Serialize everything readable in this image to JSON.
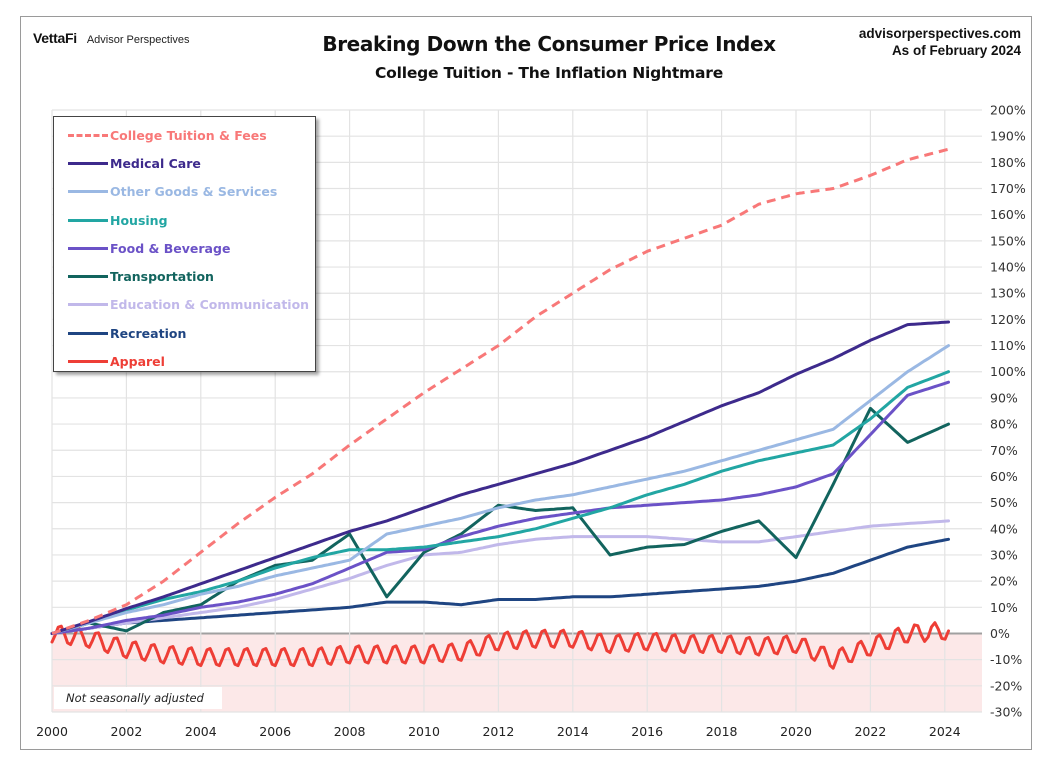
{
  "header": {
    "brand_logo": "VettaFi",
    "brand_name": "Advisor Perspectives",
    "title": "Breaking Down the Consumer Price Index",
    "subtitle": "College Tuition - The Inflation Nightmare",
    "source_site": "advisorperspectives.com",
    "as_of": "As of February 2024"
  },
  "note": "Not seasonally adjusted",
  "chart_data": {
    "type": "line",
    "title": "Breaking Down the Consumer Price Index",
    "subtitle": "College Tuition - The Inflation Nightmare",
    "xlabel": "",
    "ylabel": "",
    "xlim": [
      2000,
      2025
    ],
    "ylim": [
      -30,
      200
    ],
    "x_ticks": [
      "2000",
      "2002",
      "2004",
      "2006",
      "2008",
      "2010",
      "2012",
      "2014",
      "2016",
      "2018",
      "2020",
      "2022",
      "2024"
    ],
    "y_ticks": [
      "200%",
      "190%",
      "180%",
      "170%",
      "160%",
      "150%",
      "140%",
      "130%",
      "120%",
      "110%",
      "100%",
      "90%",
      "80%",
      "70%",
      "60%",
      "50%",
      "40%",
      "30%",
      "20%",
      "10%",
      "0%",
      "-10%",
      "-20%",
      "-30%"
    ],
    "y_axis_side": "right",
    "grid": true,
    "negative_region_shaded": true,
    "negative_region_color": "#fce8e8",
    "legend_position": "top-left",
    "x": [
      2000,
      2001,
      2002,
      2003,
      2004,
      2005,
      2006,
      2007,
      2008,
      2009,
      2010,
      2011,
      2012,
      2013,
      2014,
      2015,
      2016,
      2017,
      2018,
      2019,
      2020,
      2021,
      2022,
      2023,
      2024.1
    ],
    "series": [
      {
        "name": "College Tuition & Fees",
        "color": "#f87878",
        "dashed": true,
        "values": [
          0,
          5,
          11,
          20,
          31,
          42,
          52,
          61,
          72,
          82,
          92,
          101,
          110,
          121,
          130,
          139,
          146,
          151,
          156,
          164,
          168,
          170,
          175,
          181,
          185
        ]
      },
      {
        "name": "Medical Care",
        "color": "#3d2a8c",
        "dashed": false,
        "values": [
          0,
          4.5,
          9.5,
          14,
          19,
          24,
          29,
          34,
          39,
          43,
          48,
          53,
          57,
          61,
          65,
          70,
          75,
          81,
          87,
          92,
          99,
          105,
          112,
          118,
          119
        ]
      },
      {
        "name": "Other Goods & Services",
        "color": "#9ab8e3",
        "dashed": false,
        "values": [
          0,
          4,
          8,
          11,
          15,
          18,
          22,
          25,
          28,
          38,
          41,
          44,
          48,
          51,
          53,
          56,
          59,
          62,
          66,
          70,
          74,
          78,
          89,
          100,
          110
        ]
      },
      {
        "name": "Housing",
        "color": "#22a6a3",
        "dashed": false,
        "values": [
          0,
          4,
          9,
          13,
          16,
          20,
          25,
          29,
          32,
          32,
          33,
          35,
          37,
          40,
          44,
          48,
          53,
          57,
          62,
          66,
          69,
          72,
          82,
          94,
          100
        ]
      },
      {
        "name": "Food & Beverage",
        "color": "#6b52c7",
        "dashed": false,
        "values": [
          0,
          2,
          5,
          7,
          10,
          12,
          15,
          19,
          25,
          31,
          32,
          37,
          41,
          44,
          46,
          48,
          49,
          50,
          51,
          53,
          56,
          61,
          76,
          91,
          96
        ]
      },
      {
        "name": "Transportation",
        "color": "#12645e",
        "dashed": false,
        "values": [
          0,
          4,
          1,
          8,
          11,
          20,
          26,
          28,
          38,
          14,
          31,
          38,
          49,
          47,
          48,
          30,
          33,
          34,
          39,
          43,
          29,
          57,
          86,
          73,
          80
        ]
      },
      {
        "name": "Education & Communication",
        "color": "#c1b8ea",
        "dashed": false,
        "values": [
          0,
          2,
          4,
          6,
          8,
          10,
          13,
          17,
          21,
          26,
          30,
          31,
          34,
          36,
          37,
          37,
          37,
          36,
          35,
          35,
          37,
          39,
          41,
          42,
          43
        ]
      },
      {
        "name": "Recreation",
        "color": "#1f4582",
        "dashed": false,
        "values": [
          0,
          2,
          4,
          5,
          6,
          7,
          8,
          9,
          10,
          12,
          12,
          11,
          13,
          13,
          14,
          14,
          15,
          16,
          17,
          18,
          20,
          23,
          28,
          33,
          36
        ]
      },
      {
        "name": "Apparel",
        "color": "#ee3e36",
        "dashed": false,
        "values": [
          0,
          -2,
          -6,
          -8,
          -9,
          -9,
          -9,
          -9,
          -8,
          -8,
          -8,
          -7,
          -3,
          -2,
          -2,
          -4,
          -3,
          -4,
          -4,
          -5,
          -4,
          -10,
          -5,
          0,
          1
        ]
      }
    ]
  }
}
